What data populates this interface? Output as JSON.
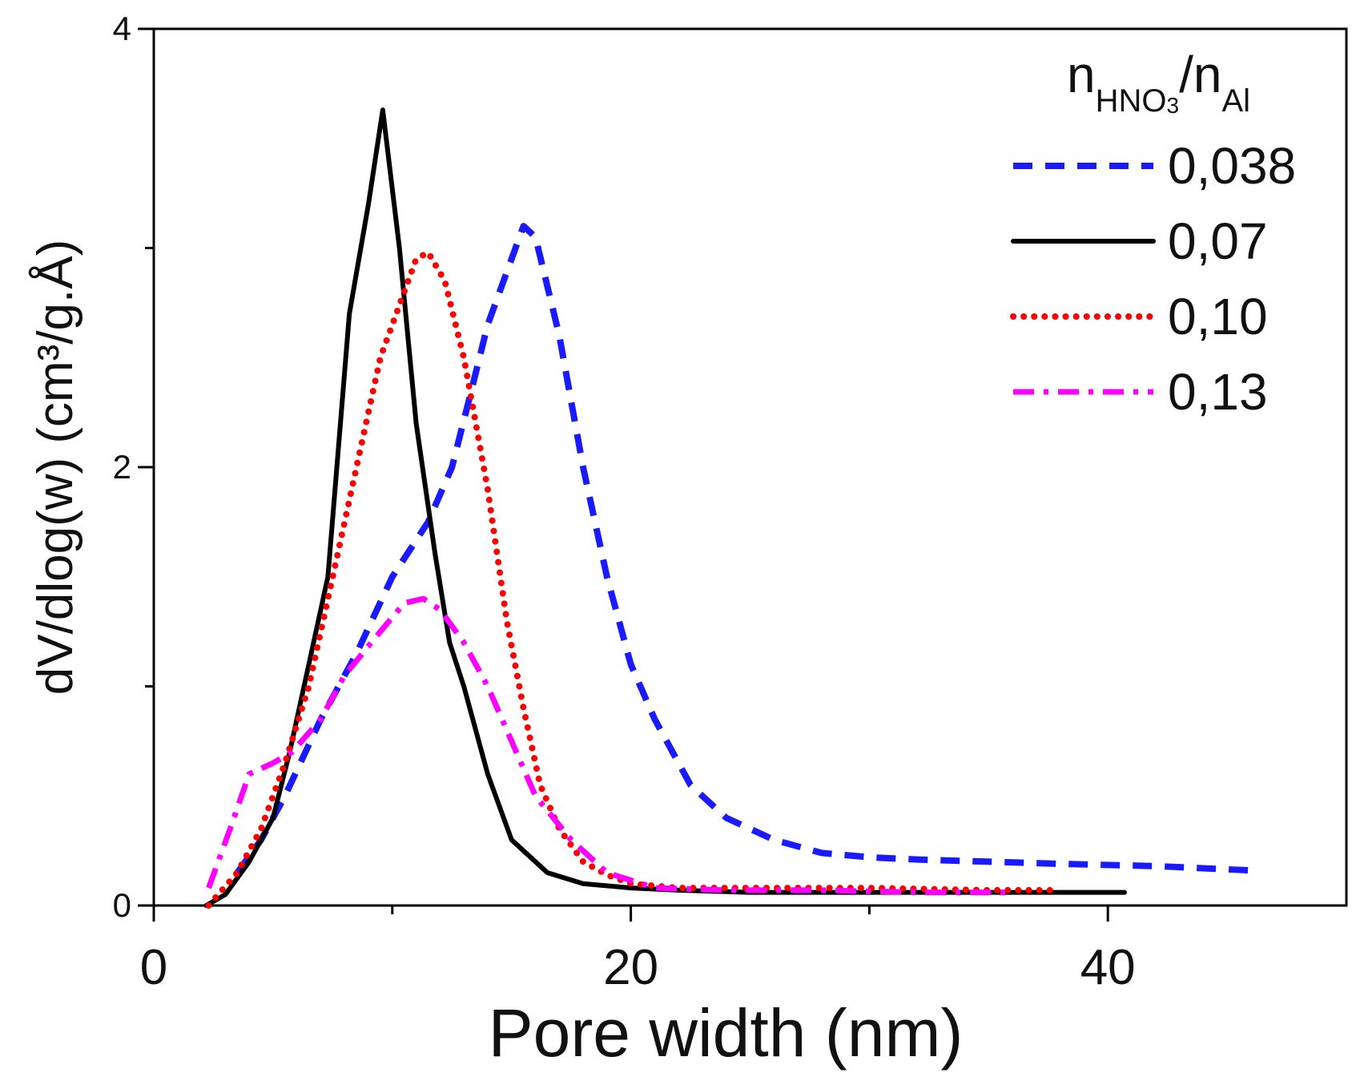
{
  "chart_data": {
    "type": "line",
    "title": "",
    "xlabel": "Pore width (nm)",
    "ylabel": "dV/dlog(w) (cm³/g.Å)",
    "xlim": [
      0,
      50
    ],
    "ylim": [
      0,
      4
    ],
    "x_ticks": [
      0,
      20,
      40
    ],
    "x_tick_labels": [
      "0",
      "20",
      "40"
    ],
    "x_minor_ticks": [
      10,
      30
    ],
    "y_ticks": [
      0,
      2,
      4
    ],
    "y_tick_labels": [
      "0",
      "2",
      "4"
    ],
    "y_minor_ticks": [
      1,
      3
    ],
    "legend": {
      "position": "top-right",
      "title_main": "n",
      "title_sub1": "HNO",
      "title_sub1_sub": "3",
      "title_slash": "/n",
      "title_sub2": "Al"
    },
    "series": [
      {
        "name": "0,038",
        "color": "#1a1aff",
        "style": "dashed",
        "x": [
          3.5,
          4.5,
          5.5,
          7,
          8.5,
          10,
          11.5,
          12.5,
          13.2,
          14,
          15,
          15.5,
          16,
          17,
          18,
          19,
          20,
          21,
          22.5,
          24,
          26,
          28,
          30,
          32,
          35,
          38,
          42,
          46
        ],
        "y": [
          0.15,
          0.3,
          0.5,
          0.85,
          1.15,
          1.5,
          1.75,
          2.0,
          2.3,
          2.65,
          2.95,
          3.1,
          3.05,
          2.6,
          2.0,
          1.5,
          1.1,
          0.85,
          0.55,
          0.4,
          0.3,
          0.24,
          0.22,
          0.21,
          0.2,
          0.19,
          0.18,
          0.16
        ]
      },
      {
        "name": "0,07",
        "color": "#000000",
        "style": "solid",
        "x": [
          2.2,
          3,
          4,
          5,
          5.7,
          6.5,
          7.3,
          8.2,
          9,
          9.6,
          10.3,
          11,
          11.8,
          12.4,
          13,
          14,
          15,
          16.5,
          18,
          20,
          22,
          25,
          30,
          35,
          40.7
        ],
        "y": [
          0.0,
          0.05,
          0.2,
          0.4,
          0.7,
          1.1,
          1.5,
          2.7,
          3.2,
          3.63,
          3.0,
          2.2,
          1.6,
          1.2,
          1.0,
          0.6,
          0.3,
          0.15,
          0.1,
          0.08,
          0.07,
          0.06,
          0.06,
          0.06,
          0.06
        ]
      },
      {
        "name": "0,10",
        "color": "#ff0000",
        "style": "dotted",
        "x": [
          2.3,
          3.5,
          4.5,
          5.5,
          6.5,
          7.5,
          8.5,
          9.5,
          10.5,
          11,
          11.5,
          12.2,
          13,
          14,
          14.8,
          15.5,
          16.2,
          17,
          18,
          19,
          20,
          22,
          25,
          30,
          35,
          38
        ],
        "y": [
          0.0,
          0.15,
          0.35,
          0.65,
          1.0,
          1.5,
          2.0,
          2.5,
          2.8,
          2.95,
          2.98,
          2.85,
          2.5,
          1.9,
          1.3,
          0.9,
          0.55,
          0.35,
          0.2,
          0.14,
          0.1,
          0.08,
          0.08,
          0.08,
          0.07,
          0.07
        ]
      },
      {
        "name": "0,13",
        "color": "#ff00ff",
        "style": "dashdot",
        "x": [
          2.3,
          3.2,
          4,
          5,
          5.8,
          7,
          8,
          9.5,
          10.5,
          11.3,
          12,
          13,
          14,
          15,
          16,
          17.5,
          19,
          21,
          24,
          28,
          32,
          36
        ],
        "y": [
          0.08,
          0.35,
          0.6,
          0.65,
          0.7,
          0.85,
          1.05,
          1.25,
          1.38,
          1.4,
          1.35,
          1.2,
          1.0,
          0.75,
          0.5,
          0.3,
          0.15,
          0.08,
          0.07,
          0.07,
          0.06,
          0.06
        ]
      }
    ]
  }
}
